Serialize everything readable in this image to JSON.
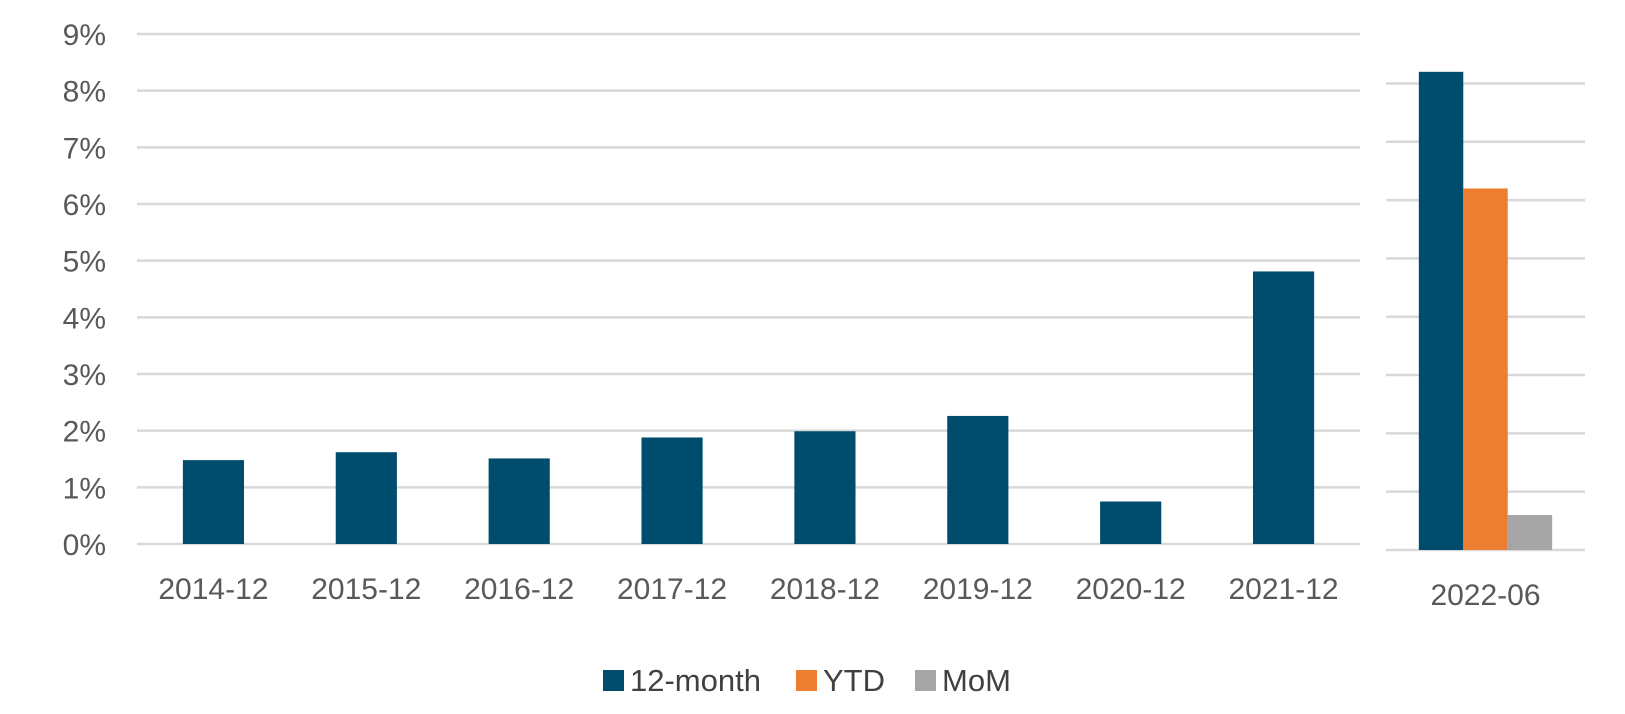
{
  "chart_data": [
    {
      "type": "bar",
      "categories": [
        "2014-12",
        "2015-12",
        "2016-12",
        "2017-12",
        "2018-12",
        "2019-12",
        "2020-12",
        "2021-12"
      ],
      "series": [
        {
          "name": "12-month",
          "color": "#004c6d",
          "values": [
            1.48,
            1.62,
            1.51,
            1.88,
            1.99,
            2.26,
            0.75,
            4.81
          ]
        }
      ],
      "ylim": [
        0,
        9
      ],
      "y_ticks": [
        "0%",
        "1%",
        "2%",
        "3%",
        "4%",
        "5%",
        "6%",
        "7%",
        "8%",
        "9%"
      ],
      "grid": true
    },
    {
      "type": "bar",
      "categories": [
        "2022-06"
      ],
      "series": [
        {
          "name": "12-month",
          "color": "#004c6d",
          "values": [
            8.2
          ]
        },
        {
          "name": "YTD",
          "color": "#ed7d31",
          "values": [
            6.2
          ]
        },
        {
          "name": "MoM",
          "color": "#a5a5a5",
          "values": [
            0.6
          ]
        }
      ],
      "ylim": [
        0,
        8.9
      ],
      "grid": true
    }
  ],
  "legend": {
    "position": "bottom",
    "items": [
      {
        "label": "12-month",
        "color": "#004c6d"
      },
      {
        "label": "YTD",
        "color": "#ed7d31"
      },
      {
        "label": "MoM",
        "color": "#a5a5a5"
      }
    ]
  }
}
